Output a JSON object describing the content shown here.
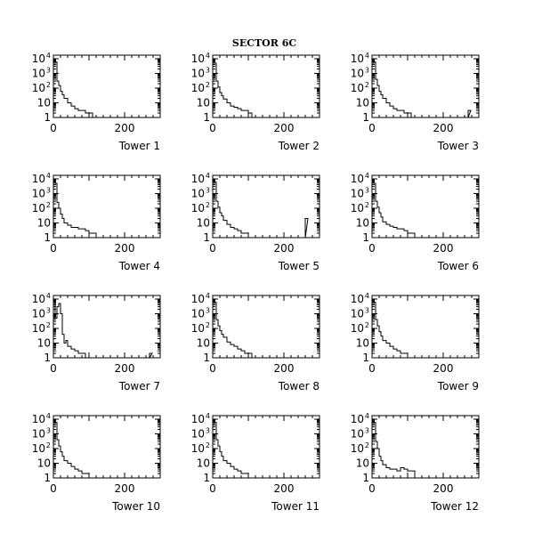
{
  "figure": {
    "title": "SECTOR 6C"
  },
  "axes": {
    "x_range": [
      0,
      300
    ],
    "x_ticks": [
      0,
      200
    ],
    "y_scale": "log",
    "y_range": [
      1,
      10000
    ],
    "y_ticks": [
      {
        "value": 1,
        "base": "1",
        "exp": ""
      },
      {
        "value": 10,
        "base": "10",
        "exp": ""
      },
      {
        "value": 100,
        "base": "10",
        "exp": "2"
      },
      {
        "value": 1000,
        "base": "10",
        "exp": "3"
      },
      {
        "value": 10000,
        "base": "10",
        "exp": "4"
      }
    ]
  },
  "chart_data": [
    {
      "type": "line",
      "title": "Tower 1",
      "x_range": [
        0,
        300
      ],
      "y_scale": "log",
      "y_range": [
        1,
        10000
      ],
      "x": [
        0,
        5,
        10,
        15,
        20,
        25,
        30,
        40,
        50,
        60,
        70,
        80,
        90,
        100,
        110,
        130,
        150,
        270
      ],
      "y": [
        8000,
        6000,
        300,
        150,
        60,
        35,
        20,
        10,
        6,
        4,
        3,
        3,
        2,
        2,
        1,
        1,
        1,
        0
      ]
    },
    {
      "type": "line",
      "title": "Tower 2",
      "x_range": [
        0,
        300
      ],
      "y_scale": "log",
      "y_range": [
        1,
        10000
      ],
      "x": [
        0,
        5,
        10,
        15,
        20,
        25,
        30,
        40,
        50,
        60,
        70,
        80,
        90,
        100,
        110,
        130
      ],
      "y": [
        8000,
        5000,
        300,
        120,
        50,
        30,
        18,
        10,
        6,
        5,
        4,
        3,
        3,
        2,
        1,
        1
      ]
    },
    {
      "type": "line",
      "title": "Tower 3",
      "x_range": [
        0,
        300
      ],
      "y_scale": "log",
      "y_range": [
        1,
        10000
      ],
      "x": [
        0,
        5,
        10,
        15,
        20,
        25,
        30,
        40,
        50,
        60,
        70,
        80,
        90,
        100,
        110,
        130,
        160,
        270
      ],
      "y": [
        8000,
        6000,
        400,
        150,
        60,
        35,
        20,
        10,
        6,
        4,
        3,
        3,
        2,
        2,
        1,
        1,
        1,
        3
      ]
    },
    {
      "type": "line",
      "title": "Tower 4",
      "x_range": [
        0,
        300
      ],
      "y_scale": "log",
      "y_range": [
        1,
        10000
      ],
      "x": [
        0,
        5,
        10,
        15,
        20,
        25,
        30,
        40,
        50,
        60,
        70,
        80,
        90,
        100,
        120,
        150,
        200
      ],
      "y": [
        8000,
        5000,
        250,
        100,
        40,
        20,
        10,
        7,
        5,
        5,
        4,
        4,
        3,
        2,
        1,
        1,
        1
      ]
    },
    {
      "type": "line",
      "title": "Tower 5",
      "x_range": [
        0,
        300
      ],
      "y_scale": "log",
      "y_range": [
        1,
        10000
      ],
      "x": [
        0,
        5,
        10,
        15,
        20,
        25,
        30,
        40,
        50,
        60,
        70,
        80,
        90,
        100,
        260
      ],
      "y": [
        8000,
        6000,
        300,
        120,
        50,
        30,
        15,
        8,
        5,
        4,
        3,
        2,
        2,
        1,
        20
      ]
    },
    {
      "type": "line",
      "title": "Tower 6",
      "x_range": [
        0,
        300
      ],
      "y_scale": "log",
      "y_range": [
        1,
        10000
      ],
      "x": [
        0,
        5,
        10,
        15,
        20,
        25,
        30,
        40,
        50,
        60,
        70,
        80,
        90,
        100,
        120,
        150
      ],
      "y": [
        8000,
        5000,
        300,
        120,
        50,
        25,
        12,
        8,
        6,
        5,
        4,
        4,
        3,
        2,
        1,
        1
      ]
    },
    {
      "type": "line",
      "title": "Tower 7",
      "x_range": [
        0,
        300
      ],
      "y_scale": "log",
      "y_range": [
        1,
        10000
      ],
      "x": [
        0,
        5,
        10,
        15,
        20,
        25,
        30,
        35,
        40,
        50,
        60,
        70,
        80,
        90,
        270
      ],
      "y": [
        8000,
        500,
        3000,
        5000,
        1000,
        40,
        10,
        15,
        6,
        4,
        3,
        2,
        2,
        1,
        2
      ]
    },
    {
      "type": "line",
      "title": "Tower 8",
      "x_range": [
        0,
        300
      ],
      "y_scale": "log",
      "y_range": [
        1,
        10000
      ],
      "x": [
        0,
        5,
        10,
        15,
        20,
        25,
        30,
        40,
        50,
        60,
        70,
        80,
        90,
        100,
        110
      ],
      "y": [
        8000,
        6000,
        400,
        150,
        70,
        40,
        25,
        12,
        8,
        6,
        4,
        3,
        2,
        2,
        1
      ]
    },
    {
      "type": "line",
      "title": "Tower 9",
      "x_range": [
        0,
        300
      ],
      "y_scale": "log",
      "y_range": [
        1,
        10000
      ],
      "x": [
        0,
        5,
        10,
        15,
        20,
        25,
        30,
        40,
        50,
        60,
        70,
        80,
        90,
        100,
        110
      ],
      "y": [
        8000,
        6000,
        400,
        150,
        60,
        30,
        15,
        10,
        6,
        4,
        3,
        2,
        2,
        1,
        1
      ]
    },
    {
      "type": "line",
      "title": "Tower 10",
      "x_range": [
        0,
        300
      ],
      "y_scale": "log",
      "y_range": [
        1,
        10000
      ],
      "x": [
        0,
        5,
        10,
        15,
        20,
        25,
        30,
        40,
        50,
        60,
        70,
        80,
        90,
        100,
        110
      ],
      "y": [
        8000,
        6000,
        400,
        150,
        60,
        30,
        15,
        10,
        6,
        4,
        3,
        2,
        2,
        1,
        1
      ]
    },
    {
      "type": "line",
      "title": "Tower 11",
      "x_range": [
        0,
        300
      ],
      "y_scale": "log",
      "y_range": [
        1,
        10000
      ],
      "x": [
        0,
        5,
        10,
        15,
        20,
        25,
        30,
        40,
        50,
        60,
        70,
        80,
        90,
        100,
        110
      ],
      "y": [
        8000,
        6000,
        400,
        150,
        60,
        30,
        15,
        10,
        6,
        4,
        3,
        2,
        2,
        1,
        1
      ]
    },
    {
      "type": "line",
      "title": "Tower 12",
      "x_range": [
        0,
        300
      ],
      "y_scale": "log",
      "y_range": [
        1,
        10000
      ],
      "x": [
        0,
        5,
        10,
        15,
        20,
        25,
        30,
        40,
        50,
        60,
        70,
        80,
        90,
        100,
        120,
        150,
        200,
        270
      ],
      "y": [
        8000,
        6000,
        300,
        100,
        30,
        15,
        8,
        5,
        4,
        4,
        3,
        5,
        4,
        3,
        1,
        1,
        1,
        0
      ]
    }
  ]
}
